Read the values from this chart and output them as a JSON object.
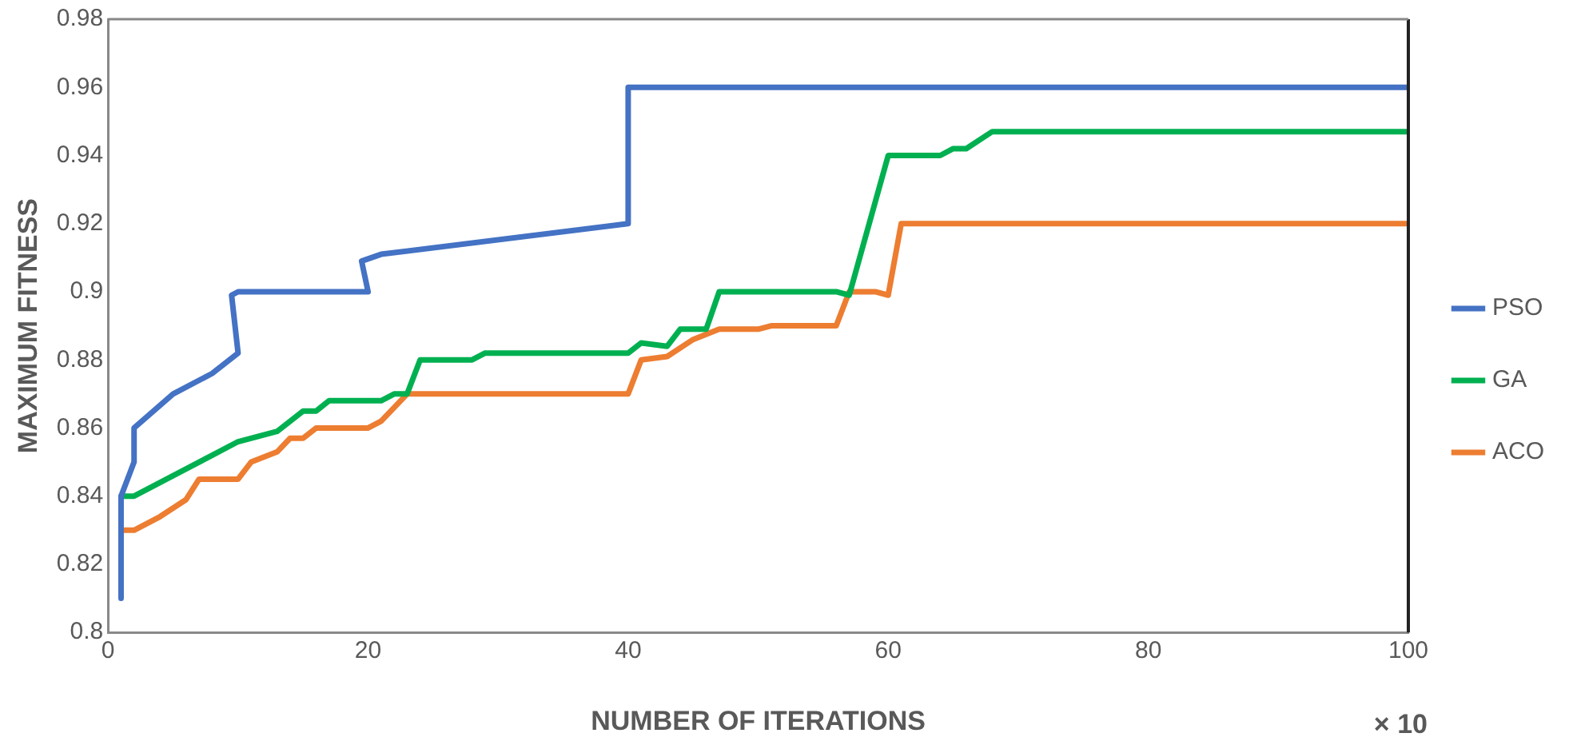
{
  "chart_data": {
    "type": "line",
    "xlabel": "NUMBER OF ITERATIONS",
    "ylabel": "MAXIMUM FITNESS",
    "annotations": [
      "× 10"
    ],
    "xlim": [
      0,
      100
    ],
    "xticks": [
      0,
      20,
      40,
      60,
      80,
      100
    ],
    "ylim": [
      0.8,
      0.98
    ],
    "yticks": [
      0.8,
      0.82,
      0.84,
      0.86,
      0.88,
      0.9,
      0.92,
      0.94,
      0.96,
      0.98
    ],
    "grid": false,
    "legend": "right",
    "marker": "none",
    "line_style": "solid",
    "series": [
      {
        "name": "PSO",
        "color": "#4472c4",
        "x": [
          1,
          1,
          2,
          2,
          5,
          8,
          10,
          9.5,
          10,
          15,
          20,
          19.5,
          21,
          40,
          40,
          100
        ],
        "values": [
          0.81,
          0.84,
          0.85,
          0.86,
          0.87,
          0.876,
          0.882,
          0.899,
          0.9,
          0.9,
          0.9,
          0.909,
          0.911,
          0.92,
          0.96,
          0.96
        ]
      },
      {
        "name": "GA",
        "color": "#00b050",
        "x": [
          1,
          2,
          4,
          6,
          8,
          10,
          13,
          15,
          16,
          17,
          21,
          22,
          23,
          24,
          28,
          29,
          40,
          41,
          43,
          44,
          46,
          47,
          50,
          56,
          57,
          60,
          64,
          65,
          66,
          68,
          100
        ],
        "values": [
          0.84,
          0.84,
          0.844,
          0.848,
          0.852,
          0.856,
          0.859,
          0.865,
          0.865,
          0.868,
          0.868,
          0.87,
          0.87,
          0.88,
          0.88,
          0.882,
          0.882,
          0.885,
          0.884,
          0.889,
          0.889,
          0.9,
          0.9,
          0.9,
          0.899,
          0.94,
          0.94,
          0.942,
          0.942,
          0.947,
          0.947
        ]
      },
      {
        "name": "ACO",
        "color": "#ed7d31",
        "x": [
          1,
          2,
          4,
          6,
          7,
          10,
          11,
          13,
          14,
          15,
          16,
          20,
          21,
          23,
          40,
          41,
          43,
          45,
          47,
          50,
          51,
          56,
          57,
          59,
          60,
          61,
          62,
          100
        ],
        "values": [
          0.83,
          0.83,
          0.834,
          0.839,
          0.845,
          0.845,
          0.85,
          0.853,
          0.857,
          0.857,
          0.86,
          0.86,
          0.862,
          0.87,
          0.87,
          0.88,
          0.881,
          0.886,
          0.889,
          0.889,
          0.89,
          0.89,
          0.9,
          0.9,
          0.899,
          0.92,
          0.92,
          0.92
        ]
      }
    ]
  }
}
